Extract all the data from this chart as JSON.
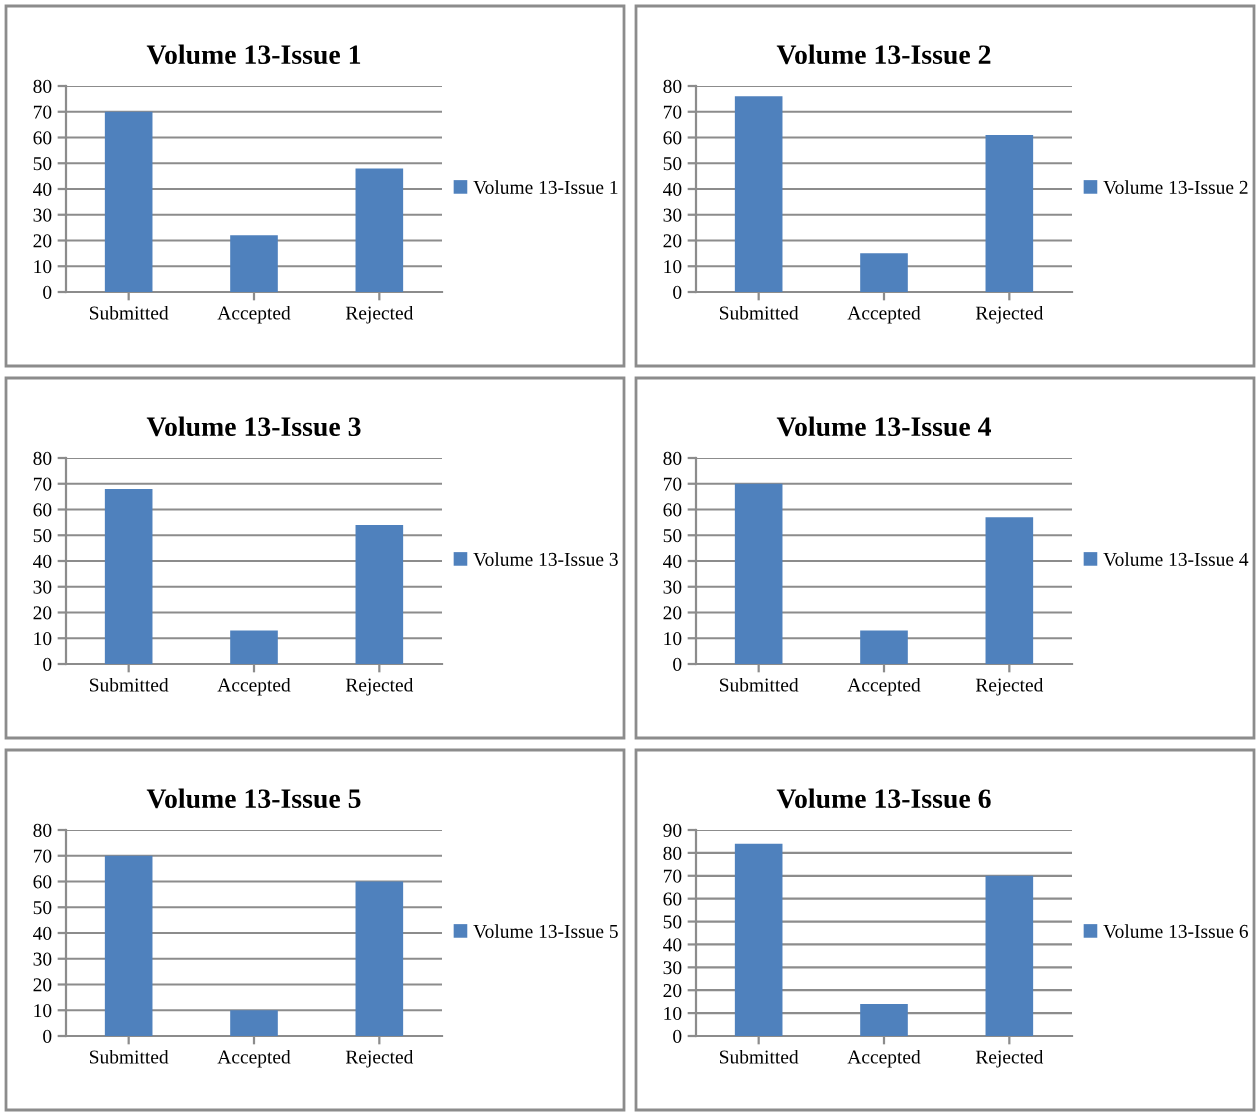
{
  "chart_data": [
    {
      "type": "bar",
      "title": "Volume 13-Issue 1",
      "categories": [
        "Submitted",
        "Accepted",
        "Rejected"
      ],
      "series": [
        {
          "name": "Volume 13-Issue 1",
          "color": "#4f81bd",
          "values": [
            70,
            22,
            48
          ]
        }
      ],
      "ylim": [
        0,
        80
      ],
      "yticks": [
        0,
        10,
        20,
        30,
        40,
        50,
        60,
        70,
        80
      ],
      "grid": "y",
      "legend": "right"
    },
    {
      "type": "bar",
      "title": "Volume 13-Issue 2",
      "categories": [
        "Submitted",
        "Accepted",
        "Rejected"
      ],
      "series": [
        {
          "name": "Volume 13-Issue 2",
          "color": "#4f81bd",
          "values": [
            76,
            15,
            61
          ]
        }
      ],
      "ylim": [
        0,
        80
      ],
      "yticks": [
        0,
        10,
        20,
        30,
        40,
        50,
        60,
        70,
        80
      ],
      "grid": "y",
      "legend": "right"
    },
    {
      "type": "bar",
      "title": "Volume 13-Issue 3",
      "categories": [
        "Submitted",
        "Accepted",
        "Rejected"
      ],
      "series": [
        {
          "name": "Volume 13-Issue 3",
          "color": "#4f81bd",
          "values": [
            68,
            13,
            54
          ]
        }
      ],
      "ylim": [
        0,
        80
      ],
      "yticks": [
        0,
        10,
        20,
        30,
        40,
        50,
        60,
        70,
        80
      ],
      "grid": "y",
      "legend": "right"
    },
    {
      "type": "bar",
      "title": "Volume 13-Issue 4",
      "categories": [
        "Submitted",
        "Accepted",
        "Rejected"
      ],
      "series": [
        {
          "name": "Volume 13-Issue 4",
          "color": "#4f81bd",
          "values": [
            70,
            13,
            57
          ]
        }
      ],
      "ylim": [
        0,
        80
      ],
      "yticks": [
        0,
        10,
        20,
        30,
        40,
        50,
        60,
        70,
        80
      ],
      "grid": "y",
      "legend": "right"
    },
    {
      "type": "bar",
      "title": "Volume 13-Issue 5",
      "categories": [
        "Submitted",
        "Accepted",
        "Rejected"
      ],
      "series": [
        {
          "name": "Volume 13-Issue 5",
          "color": "#4f81bd",
          "values": [
            70,
            10,
            60
          ]
        }
      ],
      "ylim": [
        0,
        80
      ],
      "yticks": [
        0,
        10,
        20,
        30,
        40,
        50,
        60,
        70,
        80
      ],
      "grid": "y",
      "legend": "right"
    },
    {
      "type": "bar",
      "title": "Volume 13-Issue 6",
      "categories": [
        "Submitted",
        "Accepted",
        "Rejected"
      ],
      "series": [
        {
          "name": "Volume 13-Issue 6",
          "color": "#4f81bd",
          "values": [
            84,
            14,
            70
          ]
        }
      ],
      "ylim": [
        0,
        90
      ],
      "yticks": [
        0,
        10,
        20,
        30,
        40,
        50,
        60,
        70,
        80,
        90
      ],
      "grid": "y",
      "legend": "right"
    }
  ]
}
